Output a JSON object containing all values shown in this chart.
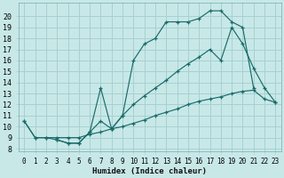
{
  "xlabel": "Humidex (Indice chaleur)",
  "bg_color": "#c8e8e8",
  "line_color": "#1a6b6b",
  "grid_color": "#a8d0d0",
  "xlim": [
    -0.5,
    23.5
  ],
  "ylim": [
    7.8,
    21.2
  ],
  "xticks": [
    0,
    1,
    2,
    3,
    4,
    5,
    6,
    7,
    8,
    9,
    10,
    11,
    12,
    13,
    14,
    15,
    16,
    17,
    18,
    19,
    20,
    21,
    22,
    23
  ],
  "yticks": [
    8,
    9,
    10,
    11,
    12,
    13,
    14,
    15,
    16,
    17,
    18,
    19,
    20
  ],
  "line1_x": [
    0,
    1,
    2,
    3,
    4,
    5,
    6,
    7,
    8,
    9,
    10,
    11,
    12,
    13,
    14,
    15,
    16,
    17,
    18,
    19,
    20,
    21,
    22,
    23
  ],
  "line1_y": [
    10.5,
    9.0,
    9.0,
    9.0,
    9.0,
    9.0,
    9.3,
    9.5,
    9.8,
    10.0,
    10.3,
    10.6,
    11.0,
    11.3,
    11.6,
    12.0,
    12.3,
    12.5,
    12.7,
    13.0,
    13.2,
    13.3,
    12.5,
    12.2
  ],
  "line2_x": [
    0,
    1,
    2,
    3,
    4,
    5,
    6,
    7,
    8,
    9,
    10,
    11,
    12,
    13,
    14,
    15,
    16,
    17,
    18,
    19,
    20,
    21
  ],
  "line2_y": [
    10.5,
    9.0,
    9.0,
    8.8,
    8.5,
    8.5,
    9.5,
    10.5,
    9.8,
    11.0,
    16.0,
    17.5,
    18.0,
    19.5,
    19.5,
    19.5,
    19.8,
    20.5,
    20.5,
    19.5,
    19.0,
    13.5
  ],
  "line3_x": [
    3,
    4,
    5,
    6,
    7,
    8,
    9,
    10,
    11,
    12,
    13,
    14,
    15,
    16,
    17,
    18,
    19,
    20,
    21,
    22,
    23
  ],
  "line3_y": [
    8.8,
    8.5,
    8.5,
    9.5,
    13.5,
    9.8,
    11.0,
    12.0,
    12.8,
    13.5,
    14.2,
    15.0,
    15.7,
    16.3,
    17.0,
    16.0,
    19.0,
    17.5,
    15.3,
    13.5,
    12.2
  ]
}
